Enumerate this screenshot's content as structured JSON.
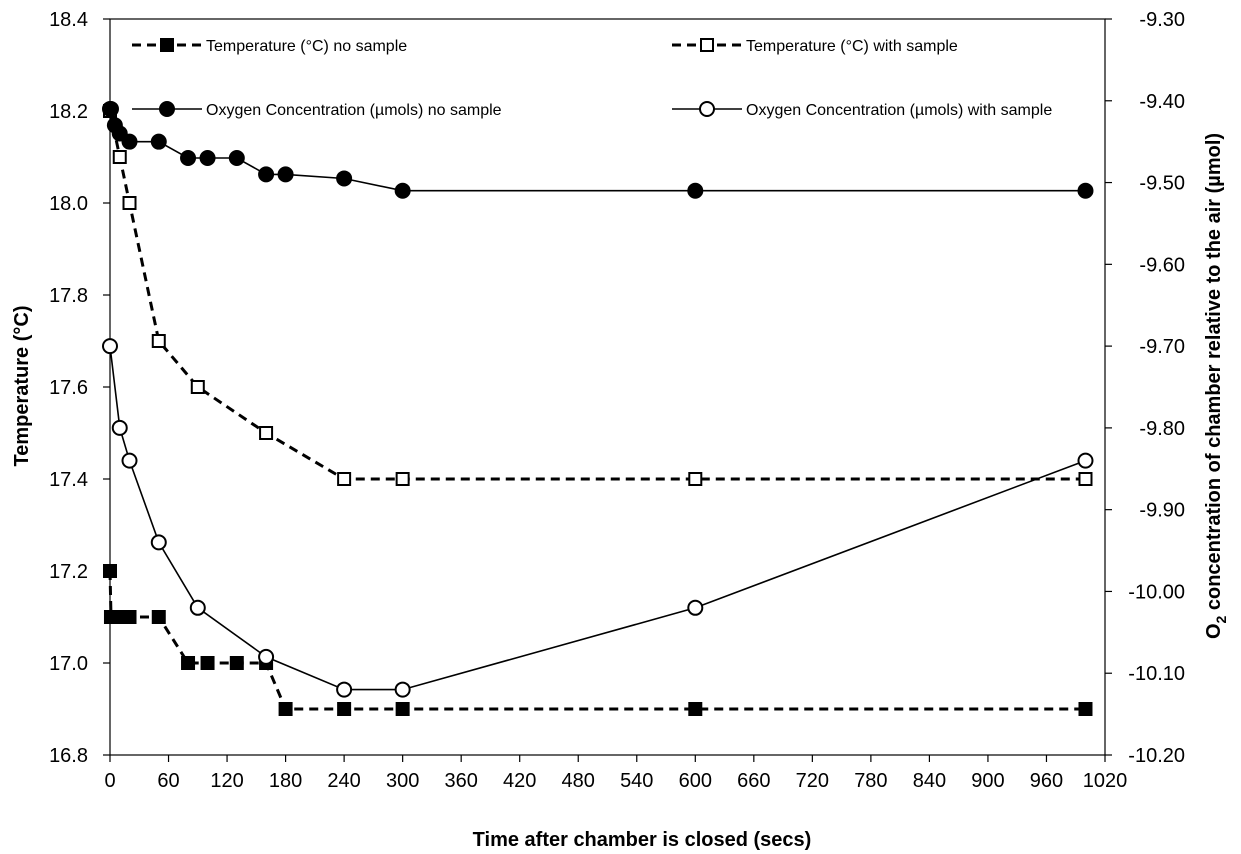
{
  "chart_data": {
    "type": "line",
    "x": [
      0,
      1000
    ],
    "xlabel": "Time after chamber is closed (secs)",
    "ylabel_left": "Temperature (°C)",
    "ylabel_right_prefix": "O",
    "ylabel_right_sub": "2",
    "ylabel_right_suffix": " concentration of chamber relative to the air (µmol)",
    "xlim": [
      0,
      1020
    ],
    "xticks": [
      0,
      60,
      120,
      180,
      240,
      300,
      360,
      420,
      480,
      540,
      600,
      660,
      720,
      780,
      840,
      900,
      960,
      1020
    ],
    "ylim_left": [
      16.8,
      18.4
    ],
    "yticks_left": [
      "16.8",
      "17.0",
      "17.2",
      "17.4",
      "17.6",
      "17.8",
      "18.0",
      "18.2",
      "18.4"
    ],
    "ylim_right": [
      -10.2,
      -9.3
    ],
    "yticks_right": [
      "-10.20",
      "-10.10",
      "-10.00",
      "-9.90",
      "-9.80",
      "-9.70",
      "-9.60",
      "-9.50",
      "-9.40",
      "-9.30"
    ],
    "grid": false,
    "legend_position": "top",
    "series": [
      {
        "name": "Temperature (°C) no sample",
        "axis": "left",
        "style": "dashed",
        "marker": "filled-square",
        "x": [
          0,
          1,
          5,
          10,
          20,
          50,
          80,
          100,
          130,
          160,
          180,
          240,
          300,
          600,
          1000
        ],
        "values": [
          17.2,
          17.1,
          17.1,
          17.1,
          17.1,
          17.1,
          17.0,
          17.0,
          17.0,
          17.0,
          16.9,
          16.9,
          16.9,
          16.9,
          16.9
        ]
      },
      {
        "name": "Temperature (°C) with sample",
        "axis": "left",
        "style": "dashed",
        "marker": "open-square",
        "x": [
          0,
          10,
          20,
          50,
          90,
          160,
          240,
          300,
          600,
          1000
        ],
        "values": [
          18.2,
          18.1,
          18.0,
          17.7,
          17.6,
          17.5,
          17.4,
          17.4,
          17.4,
          17.4
        ]
      },
      {
        "name": "Oxygen Concentration (µmols) no sample",
        "axis": "right",
        "style": "solid",
        "marker": "filled-circle",
        "x": [
          0,
          1,
          5,
          10,
          20,
          50,
          80,
          100,
          130,
          160,
          180,
          240,
          300,
          600,
          1000
        ],
        "values": [
          -9.41,
          -9.41,
          -9.43,
          -9.44,
          -9.45,
          -9.45,
          -9.47,
          -9.47,
          -9.47,
          -9.49,
          -9.49,
          -9.495,
          -9.51,
          -9.51,
          -9.51
        ]
      },
      {
        "name": "Oxygen Concentration (µmols) with sample",
        "axis": "right",
        "style": "solid",
        "marker": "open-circle",
        "x": [
          0,
          10,
          20,
          50,
          90,
          160,
          240,
          300,
          600,
          1000
        ],
        "values": [
          -9.7,
          -9.8,
          -9.84,
          -9.94,
          -10.02,
          -10.08,
          -10.12,
          -10.12,
          -10.02,
          -9.84
        ]
      }
    ]
  }
}
